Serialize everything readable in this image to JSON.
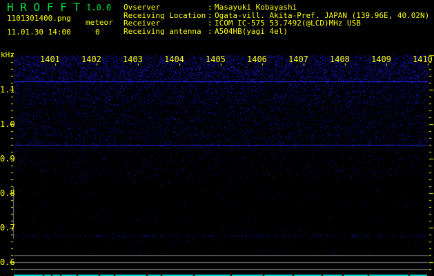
{
  "app": {
    "name": "H R O F F T",
    "version": "1.0.0"
  },
  "file": {
    "name": "1101301400.png",
    "datetime": "11.01.30 14:00"
  },
  "meteor": {
    "label": "meteor",
    "count": "0"
  },
  "info": [
    {
      "label": "Ovserver",
      "value": "Masayuki Kobayashi"
    },
    {
      "label": "Receiving Location",
      "value": "Ogata-vill. Akita-Pref. JAPAN (139.96E, 40.02N)"
    },
    {
      "label": "Receiver",
      "value": "ICOM IC-575 53.7492(@LCD)MHz USB"
    },
    {
      "label": "Receiving antenna",
      "value": "A504HB(yagi 4el)"
    }
  ],
  "axis": {
    "y_unit": "kHz",
    "y_ticks": [
      "1.1",
      "1.0",
      "0.9",
      "0.8",
      "0.7",
      "0.6"
    ],
    "x_ticks": [
      "1401",
      "1402",
      "1403",
      "1404",
      "1405",
      "1406",
      "1407",
      "1408",
      "1409",
      "1410"
    ]
  },
  "colors": {
    "text": "#ffff00",
    "title": "#00e040",
    "signal": "#2020ff",
    "bar": "#00e0e0",
    "grid": "#808080"
  }
}
